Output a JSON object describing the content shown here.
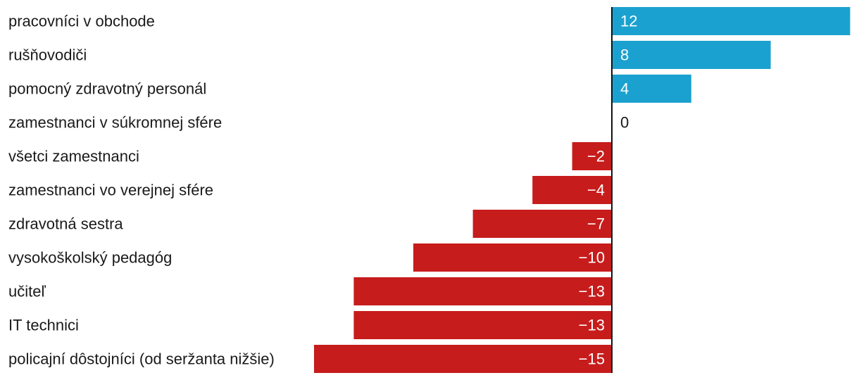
{
  "chart_data": {
    "type": "bar",
    "orientation": "horizontal",
    "title": "",
    "xlabel": "",
    "ylabel": "",
    "xlim": [
      -15,
      12
    ],
    "grid": false,
    "categories": [
      "pracovníci v obchode",
      "rušňovodiči",
      "pomocný zdravotný personál",
      "zamestnanci v súkromnej sfére",
      "všetci zamestnanci",
      "zamestnanci vo verejnej sfére",
      "zdravotná sestra",
      "vysokoškolský pedagóg",
      "učiteľ",
      "IT technici",
      "policajní dôstojníci (od seržanta nižšie)"
    ],
    "values": [
      12,
      8,
      4,
      0,
      -2,
      -4,
      -7,
      -10,
      -13,
      -13,
      -15
    ],
    "value_labels": [
      "12",
      "8",
      "4",
      "0",
      "−2",
      "−4",
      "−7",
      "−10",
      "−13",
      "−13",
      "−15"
    ],
    "colors": {
      "positive": "#1ba1cf",
      "negative": "#c71c1c",
      "axis": "#111111",
      "zero_label": "#1a1a1a",
      "bar_text": "#ffffff"
    }
  }
}
